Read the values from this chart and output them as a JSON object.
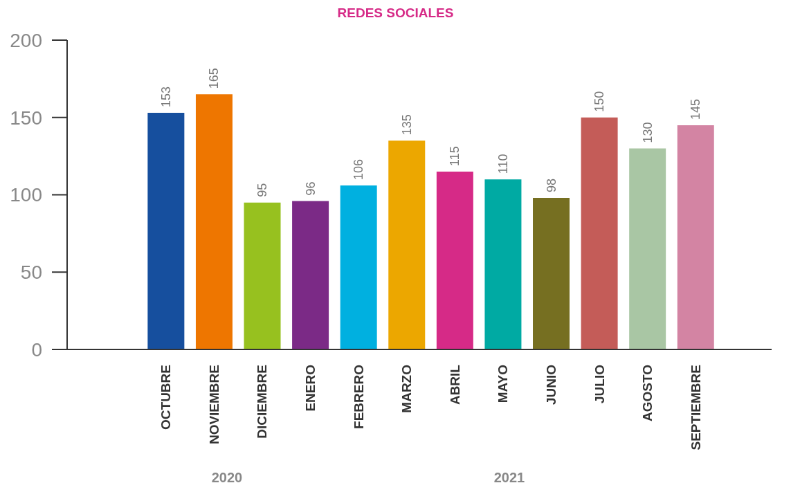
{
  "chart_data": {
    "type": "bar",
    "title": "REDES SOCIALES",
    "categories": [
      "OCTUBRE",
      "NOVIEMBRE",
      "DICIEMBRE",
      "ENERO",
      "FEBRERO",
      "MARZO",
      "ABRIL",
      "MAYO",
      "JUNIO",
      "JULIO",
      "AGOSTO",
      "SEPTIEMBRE"
    ],
    "values": [
      153,
      165,
      95,
      96,
      106,
      135,
      115,
      110,
      98,
      150,
      130,
      145
    ],
    "colors": [
      "#164f9e",
      "#ee7600",
      "#97c11f",
      "#7b2a86",
      "#00b0e0",
      "#eca700",
      "#d62a87",
      "#00aaa3",
      "#766f21",
      "#c45c58",
      "#a9c6a4",
      "#d384a3"
    ],
    "ylim": [
      0,
      200
    ],
    "yticks": [
      0,
      50,
      100,
      150,
      200
    ],
    "data_labels": true,
    "annotations": [
      "2020",
      "2021"
    ]
  }
}
